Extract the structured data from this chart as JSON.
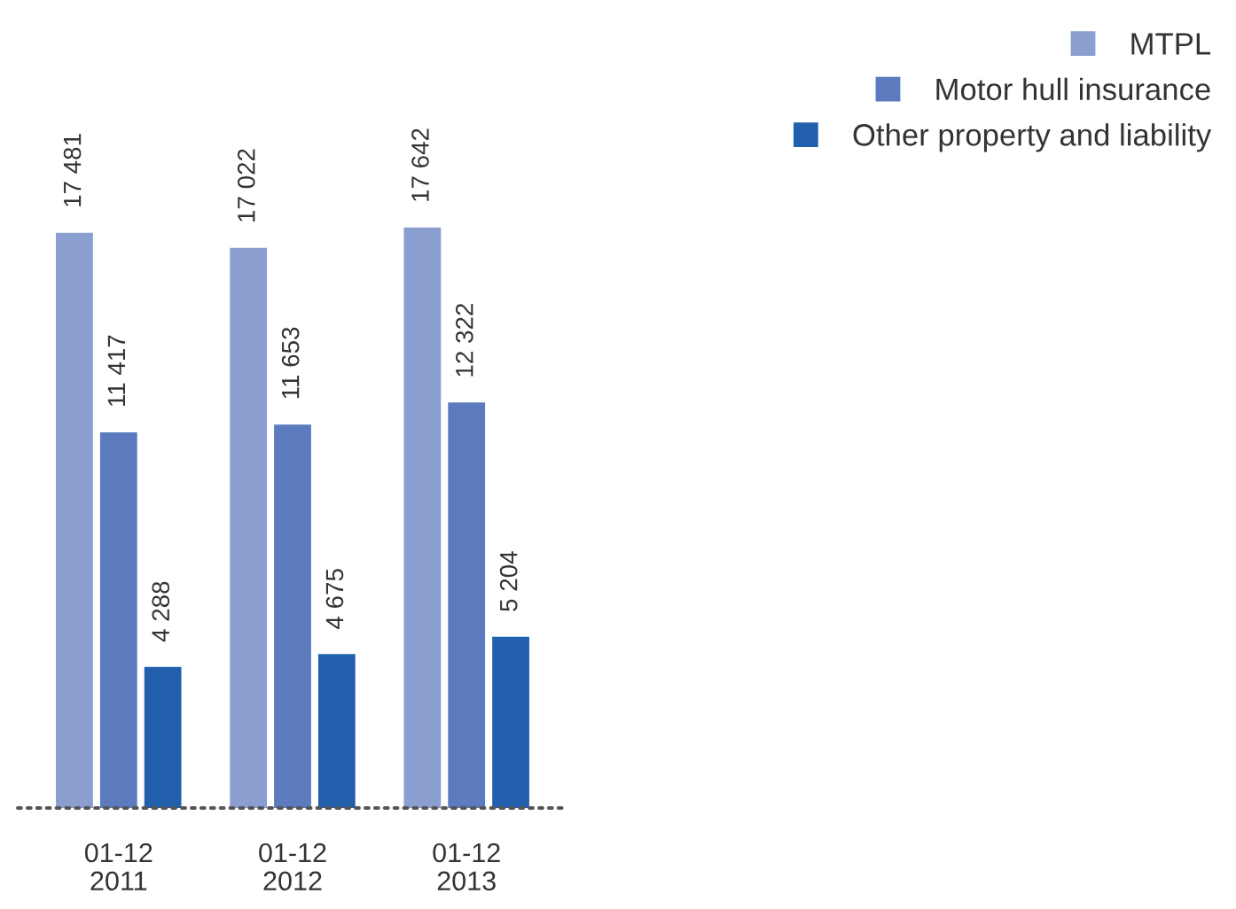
{
  "chart_data": {
    "type": "bar",
    "categories": [
      "01-12\n2011",
      "01-12\n2012",
      "01-12\n2013"
    ],
    "series": [
      {
        "name": "MTPL",
        "color": "#8a9ed0",
        "values": [
          17481,
          17022,
          17642
        ],
        "value_labels": [
          "17 481",
          "17 022",
          "17 642"
        ]
      },
      {
        "name": "Motor hull insurance",
        "color": "#5b7bbe",
        "values": [
          11417,
          11653,
          12322
        ],
        "value_labels": [
          "11 417",
          "11 653",
          "12 322"
        ]
      },
      {
        "name": "Other property and liability",
        "color": "#2260ae",
        "values": [
          4288,
          4675,
          5204
        ],
        "value_labels": [
          "4 288",
          "4 675",
          "5 204"
        ]
      }
    ],
    "tick_labels": "x",
    "legend": "top right"
  }
}
